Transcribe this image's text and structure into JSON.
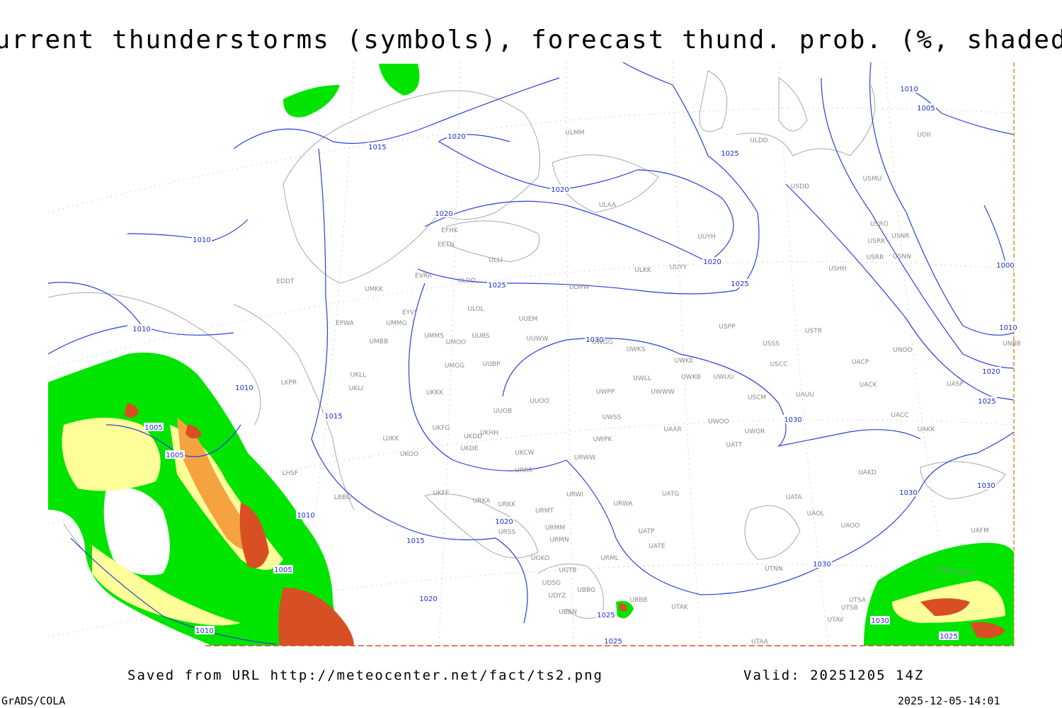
{
  "title": "Current thunderstorms (symbols), forecast thund. prob. (%, shaded)",
  "isobar_labels": [
    "1015",
    "1020",
    "1025",
    "1010",
    "1005",
    "1020",
    "1020",
    "1010",
    "1020",
    "1000",
    "1025",
    "1025",
    "1010",
    "1030",
    "1010",
    "1020",
    "1010",
    "1025",
    "1005",
    "1015",
    "1030",
    "1005",
    "1030",
    "1030",
    "1010",
    "1020",
    "1015",
    "1005",
    "1030",
    "1020",
    "1025",
    "1030",
    "1010",
    "1025",
    "1025"
  ],
  "stations": [
    "ULMM",
    "ULDD",
    "USDD",
    "USMU",
    "UOII",
    "ULAA",
    "UUYH",
    "USRO",
    "USNR",
    "USRK",
    "USRR",
    "USNN",
    "USHH",
    "EFHK",
    "EETN",
    "ULLI",
    "UUYY",
    "ULKK",
    "EVRA",
    "ULOD",
    "EDDT",
    "UMKK",
    "ULWW",
    "ULOL",
    "EYVI",
    "UUEM",
    "EPWA",
    "UMMG",
    "USPP",
    "USTR",
    "UMMS",
    "UUBS",
    "UUWW",
    "UMOO",
    "UWGG",
    "UMBB",
    "USSS",
    "UWKS",
    "UNOO",
    "UNBB",
    "UWKE",
    "UACP",
    "UMGG",
    "UUBP",
    "USCC",
    "UKLL",
    "UWKB",
    "UWUU",
    "UWLL",
    "UACK",
    "UASP",
    "UKLI",
    "LKPR",
    "UWPP",
    "UWWW",
    "USCM",
    "UAUU",
    "UKKK",
    "UUOO",
    "UUOB",
    "UACC",
    "UWSS",
    "UAKK",
    "UWOO",
    "UAAR",
    "UWOR",
    "UKHH",
    "UKFG",
    "UKDD",
    "LUKK",
    "UWPK",
    "UKDE",
    "UATT",
    "UKOO",
    "UKCW",
    "URWW",
    "UAKD",
    "URRR",
    "LHSF",
    "URWI",
    "UKFF",
    "UATG",
    "URKA",
    "URKK",
    "URWA",
    "UATA",
    "LBBG",
    "URMT",
    "UAOL",
    "URSS",
    "URMM",
    "UAOO",
    "UATP",
    "URMN",
    "UAFM",
    "UATE",
    "URML",
    "UGKO",
    "UGTB",
    "UTNN",
    "UAFO",
    "UTKN",
    "UDSG",
    "UBBG",
    "UTSA",
    "UDYZ",
    "UBBB",
    "UTAK",
    "UTSB",
    "UBBN",
    "UTAV",
    "UTAA"
  ],
  "footer": {
    "source": "Saved from URL http://meteocenter.net/fact/ts2.png",
    "valid": "Valid: 20251205 14Z",
    "software": "GrADS/COLA",
    "timestamp": "2025-12-05-14:01"
  }
}
